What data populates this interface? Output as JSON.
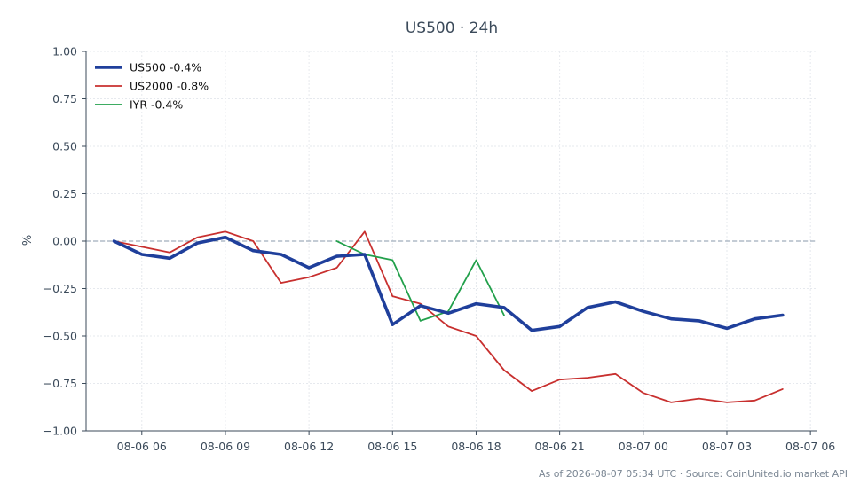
{
  "chart_data": {
    "type": "line",
    "title": "US500 · 24h",
    "xlabel": "",
    "ylabel": "%",
    "ylim": [
      -1.0,
      1.0
    ],
    "yticks": [
      "1.00",
      "0.75",
      "0.50",
      "0.25",
      "0.00",
      "−0.25",
      "−0.50",
      "−0.75",
      "−1.00"
    ],
    "ytick_values": [
      1.0,
      0.75,
      0.5,
      0.25,
      0.0,
      -0.25,
      -0.5,
      -0.75,
      -1.0
    ],
    "xlim": [
      "2026-08-06 04:00",
      "2026-08-07 06:15"
    ],
    "xticks": [
      "08-06 06",
      "08-06 09",
      "08-06 12",
      "08-06 15",
      "08-06 18",
      "08-06 21",
      "08-07 00",
      "08-07 03",
      "08-07 06"
    ],
    "xtick_values": [
      "2026-08-06 06:00",
      "2026-08-06 09:00",
      "2026-08-06 12:00",
      "2026-08-06 15:00",
      "2026-08-06 18:00",
      "2026-08-06 21:00",
      "2026-08-07 00:00",
      "2026-08-07 03:00",
      "2026-08-07 06:00"
    ],
    "grid": true,
    "zero_line": true,
    "legend": "top-left",
    "series": [
      {
        "name": "US500 -0.4%",
        "color": "#1f3f9b",
        "width": "thick",
        "x": [
          "2026-08-06 05:00",
          "2026-08-06 06:00",
          "2026-08-06 07:00",
          "2026-08-06 08:00",
          "2026-08-06 09:00",
          "2026-08-06 10:00",
          "2026-08-06 11:00",
          "2026-08-06 12:00",
          "2026-08-06 13:00",
          "2026-08-06 14:00",
          "2026-08-06 15:00",
          "2026-08-06 16:00",
          "2026-08-06 17:00",
          "2026-08-06 18:00",
          "2026-08-06 19:00",
          "2026-08-06 20:00",
          "2026-08-06 21:00",
          "2026-08-06 22:00",
          "2026-08-06 23:00",
          "2026-08-07 00:00",
          "2026-08-07 01:00",
          "2026-08-07 02:00",
          "2026-08-07 03:00",
          "2026-08-07 04:00",
          "2026-08-07 05:00"
        ],
        "values": [
          0.0,
          -0.07,
          -0.09,
          -0.01,
          0.02,
          -0.05,
          -0.07,
          -0.14,
          -0.08,
          -0.07,
          -0.44,
          -0.34,
          -0.38,
          -0.33,
          -0.35,
          -0.47,
          -0.45,
          -0.35,
          -0.32,
          -0.37,
          -0.41,
          -0.42,
          -0.46,
          -0.41,
          -0.39
        ]
      },
      {
        "name": "US2000 -0.8%",
        "color": "#c8302f",
        "width": "thin",
        "x": [
          "2026-08-06 05:00",
          "2026-08-06 06:00",
          "2026-08-06 07:00",
          "2026-08-06 08:00",
          "2026-08-06 09:00",
          "2026-08-06 10:00",
          "2026-08-06 11:00",
          "2026-08-06 12:00",
          "2026-08-06 13:00",
          "2026-08-06 14:00",
          "2026-08-06 15:00",
          "2026-08-06 16:00",
          "2026-08-06 17:00",
          "2026-08-06 18:00",
          "2026-08-06 19:00",
          "2026-08-06 20:00",
          "2026-08-06 21:00",
          "2026-08-06 22:00",
          "2026-08-06 23:00",
          "2026-08-07 00:00",
          "2026-08-07 01:00",
          "2026-08-07 02:00",
          "2026-08-07 03:00",
          "2026-08-07 04:00",
          "2026-08-07 05:00"
        ],
        "values": [
          0.0,
          -0.03,
          -0.06,
          0.02,
          0.05,
          0.0,
          -0.22,
          -0.19,
          -0.14,
          0.05,
          -0.29,
          -0.33,
          -0.45,
          -0.5,
          -0.68,
          -0.79,
          -0.73,
          -0.72,
          -0.7,
          -0.8,
          -0.85,
          -0.83,
          -0.85,
          -0.84,
          -0.78
        ]
      },
      {
        "name": "IYR -0.4%",
        "color": "#22a04b",
        "width": "thin",
        "x": [
          "2026-08-06 13:00",
          "2026-08-06 14:00",
          "2026-08-06 15:00",
          "2026-08-06 16:00",
          "2026-08-06 17:00",
          "2026-08-06 18:00",
          "2026-08-06 19:00"
        ],
        "values": [
          0.0,
          -0.07,
          -0.1,
          -0.42,
          -0.37,
          -0.1,
          -0.39
        ]
      }
    ]
  },
  "footer": {
    "text": "As of 2026-08-07 05:34 UTC · Source: CoinUnited.io market API"
  }
}
